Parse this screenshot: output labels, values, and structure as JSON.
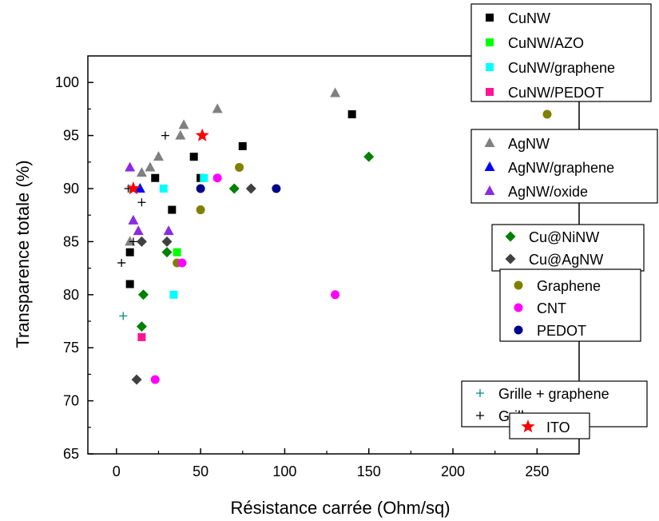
{
  "chart_data": {
    "type": "scatter",
    "title": "",
    "xlabel": "Résistance carrée (Ohm/sq)",
    "ylabel": "Transparence totale (%)",
    "xlim": [
      -17,
      275
    ],
    "ylim": [
      65,
      102.5
    ],
    "x_ticks": [
      0,
      50,
      100,
      150,
      200,
      250
    ],
    "y_ticks": [
      65,
      70,
      75,
      80,
      85,
      90,
      95,
      100
    ],
    "grid": false,
    "legend_position": "right, outside plot (grouped boxes)",
    "legend_groups": [
      [
        "CuNW",
        "CuNW/AZO",
        "CuNW/graphene",
        "CuNW/PEDOT"
      ],
      [
        "AgNW",
        "AgNW/graphene",
        "AgNW/oxide"
      ],
      [
        "Cu@NiNW",
        "Cu@AgNW"
      ],
      [
        "Graphene",
        "CNT",
        "PEDOT"
      ],
      [
        "Grille + graphene",
        "Grille"
      ],
      [
        "ITO"
      ]
    ],
    "series": [
      {
        "name": "CuNW",
        "marker": "square",
        "color": "#000000",
        "points": [
          [
            8,
            84
          ],
          [
            8,
            81
          ],
          [
            23,
            91
          ],
          [
            33,
            88
          ],
          [
            46,
            93
          ],
          [
            50,
            91
          ],
          [
            75,
            94
          ],
          [
            140,
            97
          ]
        ]
      },
      {
        "name": "CuNW/AZO",
        "marker": "square",
        "color": "#00ff00",
        "points": [
          [
            36,
            84
          ]
        ]
      },
      {
        "name": "CuNW/graphene",
        "marker": "square",
        "color": "#00ffff",
        "points": [
          [
            28,
            90
          ],
          [
            34,
            80
          ],
          [
            52,
            91
          ]
        ]
      },
      {
        "name": "CuNW/PEDOT",
        "marker": "square",
        "color": "#ff1493",
        "points": [
          [
            15,
            76
          ]
        ]
      },
      {
        "name": "AgNW",
        "marker": "triangle-up",
        "color": "#808080",
        "points": [
          [
            8,
            85
          ],
          [
            15,
            91.5
          ],
          [
            20,
            92
          ],
          [
            25,
            93
          ],
          [
            38,
            95
          ],
          [
            40,
            96
          ],
          [
            60,
            97.5
          ],
          [
            130,
            99
          ]
        ]
      },
      {
        "name": "AgNW/graphene",
        "marker": "triangle-up",
        "color": "#0000ff",
        "points": [
          [
            14,
            90
          ]
        ]
      },
      {
        "name": "AgNW/oxide",
        "marker": "triangle-up",
        "color": "#8a2be2",
        "points": [
          [
            8,
            92
          ],
          [
            10,
            87
          ],
          [
            13,
            86
          ],
          [
            31,
            86
          ]
        ]
      },
      {
        "name": "Cu@NiNW",
        "marker": "diamond",
        "color": "#008000",
        "points": [
          [
            16,
            80
          ],
          [
            15,
            77
          ],
          [
            30,
            84
          ],
          [
            70,
            90
          ],
          [
            150,
            93
          ]
        ]
      },
      {
        "name": "Cu@AgNW",
        "marker": "diamond",
        "color": "#404040",
        "points": [
          [
            12,
            72
          ],
          [
            15,
            85
          ],
          [
            30,
            85
          ],
          [
            80,
            90
          ]
        ]
      },
      {
        "name": "Graphene",
        "marker": "circle",
        "color": "#808000",
        "points": [
          [
            36,
            83
          ],
          [
            50,
            88
          ],
          [
            73,
            92
          ],
          [
            256,
            97
          ]
        ]
      },
      {
        "name": "CNT",
        "marker": "circle",
        "color": "#ff00ff",
        "points": [
          [
            23,
            72
          ],
          [
            39,
            83
          ],
          [
            60,
            91
          ],
          [
            130,
            80
          ]
        ]
      },
      {
        "name": "PEDOT",
        "marker": "circle",
        "color": "#00008b",
        "points": [
          [
            50,
            90
          ],
          [
            95,
            90
          ]
        ]
      },
      {
        "name": "Grille + graphene",
        "marker": "plus",
        "color": "#008b8b",
        "points": [
          [
            4,
            78
          ],
          [
            8,
            90
          ]
        ]
      },
      {
        "name": "Grille",
        "marker": "plus",
        "color": "#000000",
        "points": [
          [
            3,
            83
          ],
          [
            7,
            90
          ],
          [
            10,
            85
          ],
          [
            15,
            88.7
          ],
          [
            29,
            95
          ]
        ]
      },
      {
        "name": "ITO",
        "marker": "star",
        "color": "#ff0000",
        "points": [
          [
            10,
            90
          ],
          [
            51,
            95
          ]
        ]
      }
    ]
  }
}
